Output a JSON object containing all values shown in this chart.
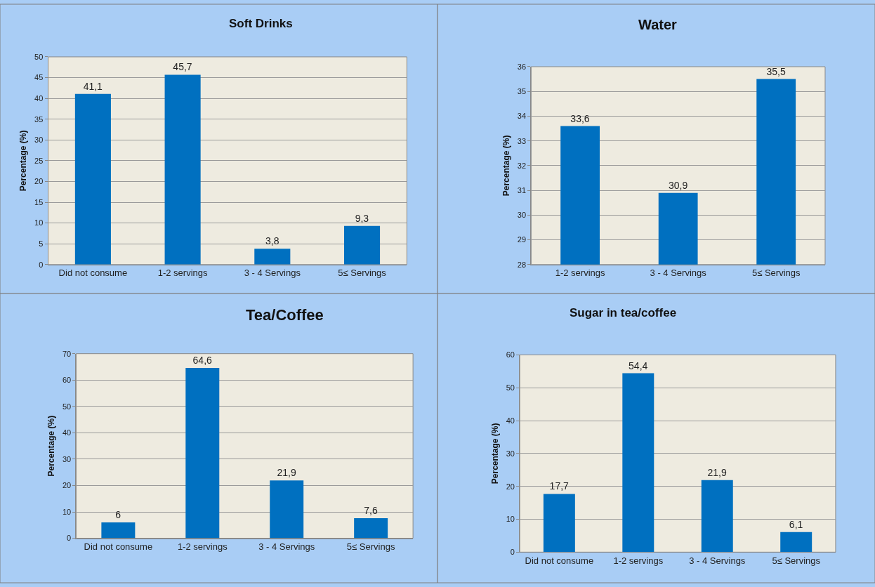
{
  "chart_data": [
    {
      "type": "bar",
      "title": "Soft Drinks",
      "ylabel": "Percentage (%)",
      "categories": [
        "Did not consume",
        "1-2 servings",
        "3 - 4 Servings",
        "5≤ Servings"
      ],
      "values": [
        41.1,
        45.7,
        3.8,
        9.3
      ],
      "value_labels": [
        "41,1",
        "45,7",
        "3,8",
        "9,3"
      ],
      "color": "#0070c0",
      "ylim": [
        0,
        50
      ],
      "yticks": [
        0,
        5,
        10,
        15,
        20,
        25,
        30,
        35,
        40,
        45,
        50
      ],
      "grid": "y"
    },
    {
      "type": "bar",
      "title": "Water",
      "ylabel": "Percentage (%)",
      "categories": [
        "1-2 servings",
        "3 - 4 Servings",
        "5≤ Servings"
      ],
      "values": [
        33.6,
        30.9,
        35.5
      ],
      "value_labels": [
        "33,6",
        "30,9",
        "35,5"
      ],
      "color": "#0070c0",
      "ylim": [
        28,
        36
      ],
      "yticks": [
        28,
        29,
        30,
        31,
        32,
        33,
        34,
        35,
        36
      ],
      "grid": "y"
    },
    {
      "type": "bar",
      "title": "Tea/Coffee",
      "ylabel": "Percentage (%)",
      "categories": [
        "Did not consume",
        "1-2 servings",
        "3 - 4 Servings",
        "5≤ Servings"
      ],
      "values": [
        6,
        64.6,
        21.9,
        7.6
      ],
      "value_labels": [
        "6",
        "64,6",
        "21,9",
        "7,6"
      ],
      "color": "#0070c0",
      "ylim": [
        0,
        70
      ],
      "yticks": [
        0,
        10,
        20,
        30,
        40,
        50,
        60,
        70
      ],
      "grid": "y"
    },
    {
      "type": "bar",
      "title": "Sugar in tea/coffee",
      "ylabel": "Percentage (%)",
      "categories": [
        "Did not consume",
        "1-2 servings",
        "3 - 4 Servings",
        "5≤ Servings"
      ],
      "values": [
        17.7,
        54.4,
        21.9,
        6.1
      ],
      "value_labels": [
        "17,7",
        "54,4",
        "21,9",
        "6,1"
      ],
      "color": "#0070c0",
      "ylim": [
        0,
        60
      ],
      "yticks": [
        0,
        10,
        20,
        30,
        40,
        50,
        60
      ],
      "grid": "y"
    }
  ]
}
